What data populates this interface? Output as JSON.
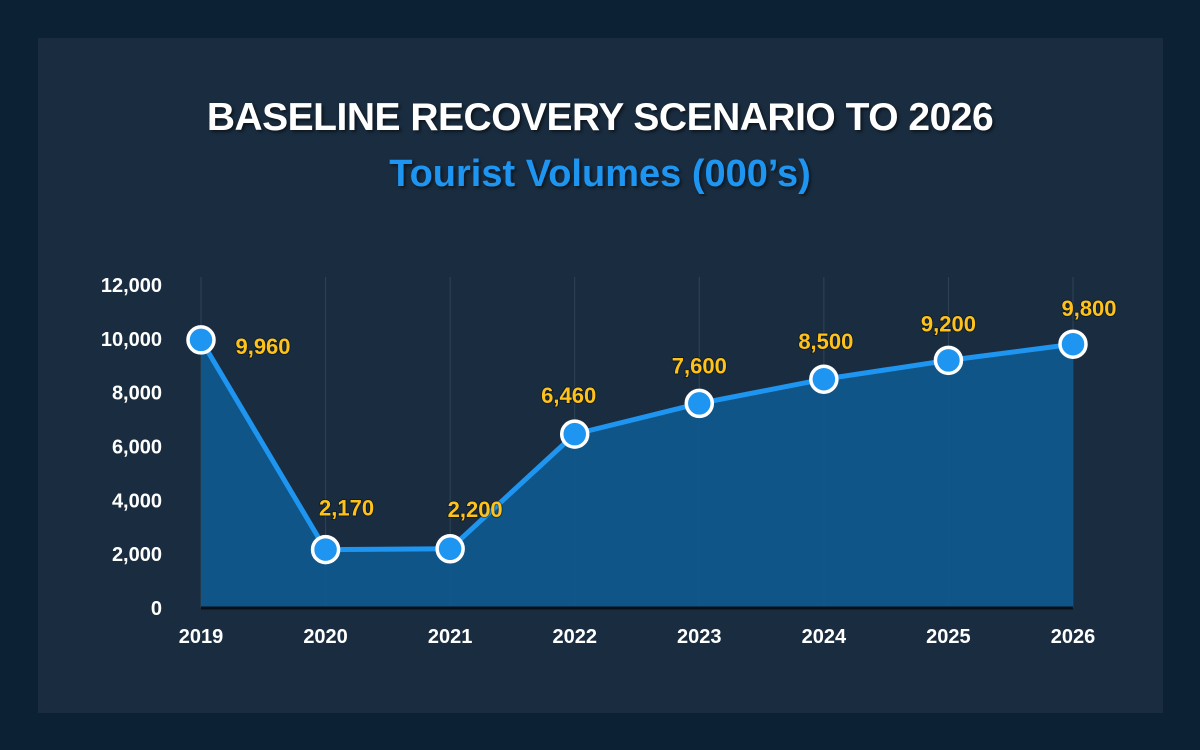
{
  "page": {
    "title": "BASELINE RECOVERY SCENARIO TO 2026",
    "subtitle": "Tourist Volumes (000’s)"
  },
  "colors": {
    "background": "#0d2135",
    "panel": "#1a2d40",
    "line": "#1e95f0",
    "area": "#0e5a90",
    "marker_fill": "#1e95f0",
    "marker_stroke": "#ffffff",
    "data_label": "#ffc21a",
    "axis_text": "#ffffff"
  },
  "chart_data": {
    "type": "area",
    "title": "BASELINE RECOVERY SCENARIO TO 2026",
    "subtitle": "Tourist Volumes (000’s)",
    "categories": [
      "2019",
      "2020",
      "2021",
      "2022",
      "2023",
      "2024",
      "2025",
      "2026"
    ],
    "series": [
      {
        "values": [
          9960,
          2170,
          2200,
          6460,
          7600,
          8500,
          9200,
          9800
        ],
        "data_labels": [
          "9,960",
          "2,170",
          "2,200",
          "6,460",
          "7,600",
          "8,500",
          "9,200",
          "9,800"
        ]
      }
    ],
    "ylim": [
      0,
      12000
    ],
    "yticks": [
      0,
      2000,
      4000,
      6000,
      8000,
      10000,
      12000
    ],
    "ytick_labels": [
      "0",
      "2,000",
      "4,000",
      "6,000",
      "8,000",
      "10,000",
      "12,000"
    ],
    "xlabel": "",
    "ylabel": "",
    "grid": "vertical",
    "legend": "none"
  }
}
